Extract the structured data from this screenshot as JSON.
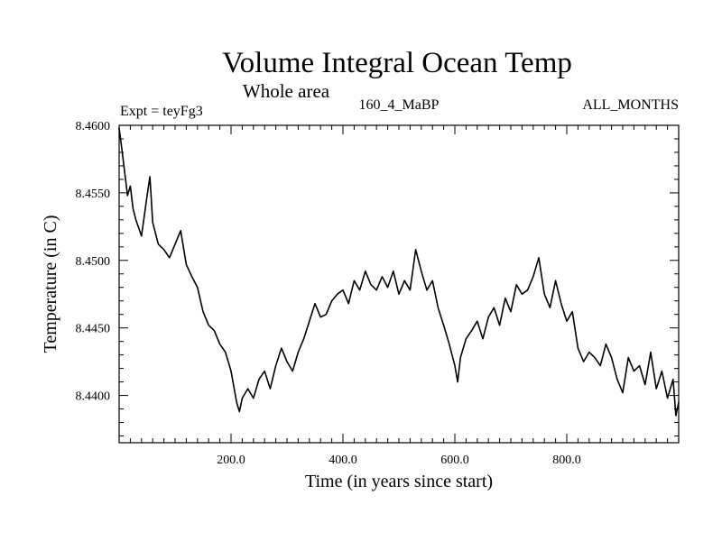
{
  "chart_data": {
    "type": "line",
    "title": "Volume Integral Ocean Temp",
    "subtitle": "Whole area",
    "expt_label": "Expt = teyFg3",
    "run_label": "160_4_MaBP",
    "season_label": "ALL_MONTHS",
    "xlabel": "Time (in years since start)",
    "ylabel": "Temperature (in C)",
    "xlim": [
      0,
      1000
    ],
    "ylim": [
      8.4365,
      8.46
    ],
    "xticks": [
      200,
      400,
      600,
      800
    ],
    "xtick_labels": [
      "200.0",
      "400.0",
      "600.0",
      "800.0"
    ],
    "yticks": [
      8.44,
      8.445,
      8.45,
      8.455,
      8.46
    ],
    "ytick_labels": [
      "8.4400",
      "8.4450",
      "8.4500",
      "8.4550",
      "8.4600"
    ],
    "series": [
      {
        "name": "Volume integral ocean temperature",
        "x": [
          0,
          5,
          10,
          15,
          20,
          25,
          30,
          40,
          50,
          55,
          60,
          70,
          80,
          90,
          100,
          110,
          120,
          130,
          140,
          150,
          160,
          170,
          180,
          190,
          200,
          210,
          215,
          220,
          230,
          240,
          250,
          260,
          270,
          280,
          290,
          300,
          310,
          320,
          330,
          340,
          350,
          360,
          370,
          380,
          390,
          400,
          410,
          420,
          430,
          440,
          450,
          460,
          470,
          480,
          490,
          500,
          510,
          520,
          530,
          540,
          550,
          560,
          570,
          580,
          590,
          600,
          605,
          610,
          620,
          630,
          640,
          650,
          660,
          670,
          680,
          690,
          700,
          710,
          720,
          730,
          740,
          750,
          760,
          770,
          780,
          790,
          800,
          810,
          820,
          830,
          840,
          850,
          860,
          870,
          880,
          890,
          900,
          910,
          920,
          930,
          940,
          950,
          960,
          970,
          980,
          990,
          995,
          1000
        ],
        "y": [
          8.4598,
          8.4582,
          8.4565,
          8.4548,
          8.4555,
          8.4538,
          8.453,
          8.4518,
          8.4548,
          8.4562,
          8.4528,
          8.4512,
          8.4508,
          8.4502,
          8.4512,
          8.4522,
          8.4497,
          8.4488,
          8.448,
          8.4462,
          8.4452,
          8.4448,
          8.4438,
          8.4432,
          8.4418,
          8.4395,
          8.4388,
          8.4398,
          8.4405,
          8.4398,
          8.4412,
          8.4418,
          8.4405,
          8.4422,
          8.4435,
          8.4425,
          8.4418,
          8.4432,
          8.4442,
          8.4455,
          8.4468,
          8.4458,
          8.446,
          8.447,
          8.4475,
          8.4478,
          8.4468,
          8.4485,
          8.4478,
          8.4492,
          8.4482,
          8.4478,
          8.4488,
          8.448,
          8.4492,
          8.4475,
          8.4485,
          8.4478,
          8.4508,
          8.4492,
          8.4478,
          8.4485,
          8.4465,
          8.4452,
          8.4438,
          8.4422,
          8.441,
          8.4428,
          8.4442,
          8.4448,
          8.4455,
          8.4442,
          8.4458,
          8.4465,
          8.4452,
          8.4472,
          8.4462,
          8.4482,
          8.4475,
          8.4478,
          8.4488,
          8.4502,
          8.4475,
          8.4465,
          8.4485,
          8.4468,
          8.4455,
          8.4462,
          8.4435,
          8.4425,
          8.4432,
          8.4428,
          8.4422,
          8.4438,
          8.4428,
          8.4412,
          8.4402,
          8.4428,
          8.4418,
          8.4422,
          8.4408,
          8.4432,
          8.4405,
          8.4418,
          8.4398,
          8.4412,
          8.4385,
          8.4395
        ]
      }
    ]
  }
}
